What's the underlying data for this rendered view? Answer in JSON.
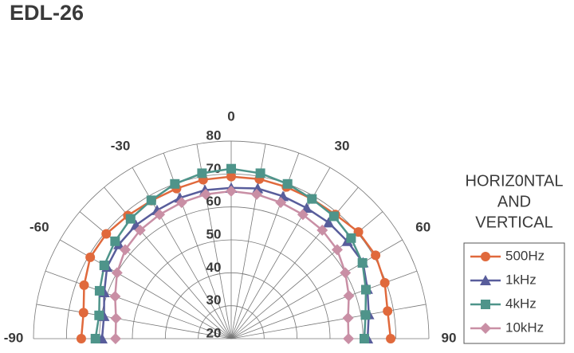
{
  "chart_data": {
    "type": "polar",
    "title": "EDL-26",
    "legend_title": [
      "HORIZ0NTAL",
      "AND",
      "VERTICAL"
    ],
    "legend": "right",
    "grid": true,
    "x": [
      -90,
      -80,
      -70,
      -60,
      -50,
      -40,
      -30,
      -20,
      -10,
      0,
      10,
      20,
      30,
      40,
      50,
      60,
      70,
      80,
      90
    ],
    "xlim": [
      -90,
      90
    ],
    "xticks": [
      -90,
      -60,
      -30,
      0,
      30,
      60,
      90
    ],
    "ylim": [
      20,
      80
    ],
    "yticks": [
      20,
      30,
      40,
      50,
      60,
      70,
      80
    ],
    "series": [
      {
        "name": "500Hz",
        "color": "#e0693c",
        "marker": "circle",
        "values": [
          65.5,
          65.5,
          67.5,
          69.4,
          69.5,
          68.8,
          68.4,
          68.5,
          69,
          69.2,
          69.2,
          69,
          69,
          69.2,
          70.4,
          70.6,
          69.6,
          68.2,
          68.4
        ]
      },
      {
        "name": "1kHz",
        "color": "#585d9b",
        "marker": "triangle",
        "values": [
          59.2,
          59.2,
          61,
          63.5,
          64.5,
          65,
          65,
          65.5,
          65.8,
          65.8,
          66.3,
          66,
          65.8,
          66,
          66,
          66.2,
          64,
          62.4,
          61.4
        ]
      },
      {
        "name": "4kHz",
        "color": "#4e948a",
        "marker": "square",
        "values": [
          61.2,
          60.7,
          62.5,
          64.5,
          66,
          67.5,
          68.5,
          70,
          71,
          71.6,
          71,
          70,
          69,
          68.5,
          67.5,
          66,
          63.5,
          61.4,
          60.4
        ]
      },
      {
        "name": "10kHz",
        "color": "#c98fa5",
        "marker": "diamond",
        "values": [
          55.1,
          55.5,
          57.5,
          60,
          62,
          63,
          63.5,
          64,
          64.5,
          64.8,
          64.5,
          64,
          63.5,
          63,
          62,
          60,
          58,
          56,
          55.6
        ]
      }
    ]
  }
}
